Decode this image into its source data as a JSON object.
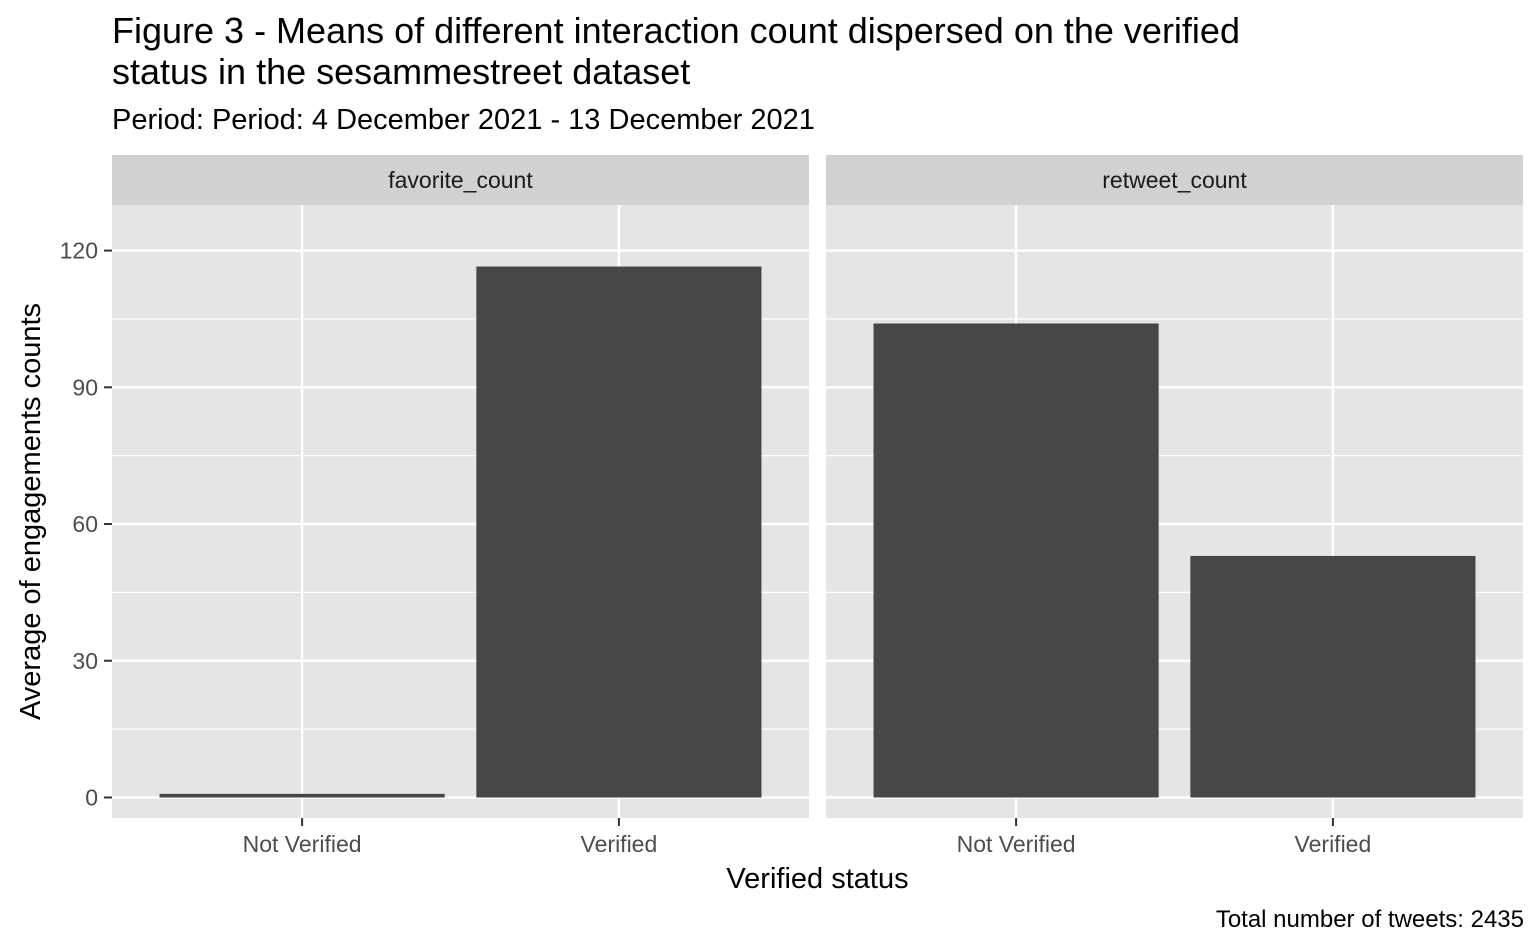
{
  "chart_data": {
    "type": "bar",
    "title_lines": [
      "Figure 3 - Means of different interaction count dispersed on the verified",
      "status in the sesammestreet dataset"
    ],
    "subtitle": "Period: Period: 4 December 2021 - 13 December 2021",
    "caption": "Total number of tweets: 2435",
    "xlabel": "Verified status",
    "ylabel": "Average of engagements counts",
    "ylim": [
      -4.5,
      130
    ],
    "y_ticks": [
      0,
      30,
      60,
      90,
      120
    ],
    "grid": true,
    "categories": [
      "Not Verified",
      "Verified"
    ],
    "facets": [
      {
        "label": "favorite_count",
        "values": [
          0.8,
          116.5
        ]
      },
      {
        "label": "retweet_count",
        "values": [
          104,
          53
        ]
      }
    ],
    "colors": {
      "bar": "#474747",
      "panel_bg": "#e5e5e5",
      "strip_bg": "#d1d1d1",
      "grid": "#ffffff",
      "axis_text": "#4d4d4d"
    }
  }
}
